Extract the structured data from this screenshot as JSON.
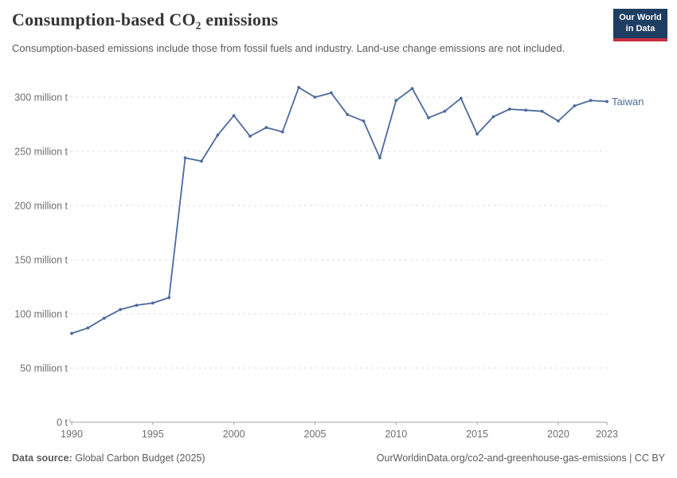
{
  "header": {
    "title": "Consumption-based CO₂ emissions",
    "subtitle": "Consumption-based emissions include those from fossil fuels and industry. Land-use change emissions are not included.",
    "logo": {
      "line1": "Our World",
      "line2": "in Data"
    }
  },
  "chart_data": {
    "type": "line",
    "title": "Consumption-based CO₂ emissions",
    "xlabel": "",
    "ylabel": "",
    "grid": "horizontal-dashed",
    "legend_position": "end-of-line-label",
    "xlim": [
      1990,
      2023
    ],
    "ylim": [
      0,
      310
    ],
    "x_ticks": [
      1990,
      1995,
      2000,
      2005,
      2010,
      2015,
      2020,
      2023
    ],
    "y_ticks": [
      0,
      50,
      100,
      150,
      200,
      250,
      300
    ],
    "y_tick_labels": [
      "0 t",
      "50 million t",
      "100 million t",
      "150 million t",
      "200 million t",
      "250 million t",
      "300 million t"
    ],
    "x": [
      1990,
      1991,
      1992,
      1993,
      1994,
      1995,
      1996,
      1997,
      1998,
      1999,
      2000,
      2001,
      2002,
      2003,
      2004,
      2005,
      2006,
      2007,
      2008,
      2009,
      2010,
      2011,
      2012,
      2013,
      2014,
      2015,
      2016,
      2017,
      2018,
      2019,
      2020,
      2021,
      2022,
      2023
    ],
    "series": [
      {
        "name": "Taiwan",
        "unit": "million t",
        "values": [
          82,
          87,
          96,
          104,
          108,
          110,
          115,
          244,
          241,
          265,
          283,
          264,
          272,
          268,
          309,
          300,
          304,
          284,
          278,
          244,
          297,
          308,
          281,
          287,
          299,
          266,
          282,
          289,
          288,
          287,
          278,
          292,
          297,
          296
        ]
      }
    ]
  },
  "colors": {
    "line": "#4C6A9C",
    "grid": "#dedede",
    "axis": "#a5a5a5",
    "tick_text": "#6e6e6e",
    "title_text": "#373737",
    "subtitle_text": "#5a5a5a",
    "footer_text": "#5b5b5b",
    "logo_bg": "#1d3d63",
    "logo_red": "#c5303c"
  },
  "footer": {
    "datasource_label": "Data source:",
    "datasource_value": " Global Carbon Budget (2025)",
    "attribution": "OurWorldinData.org/co2-and-greenhouse-gas-emissions | CC BY"
  }
}
